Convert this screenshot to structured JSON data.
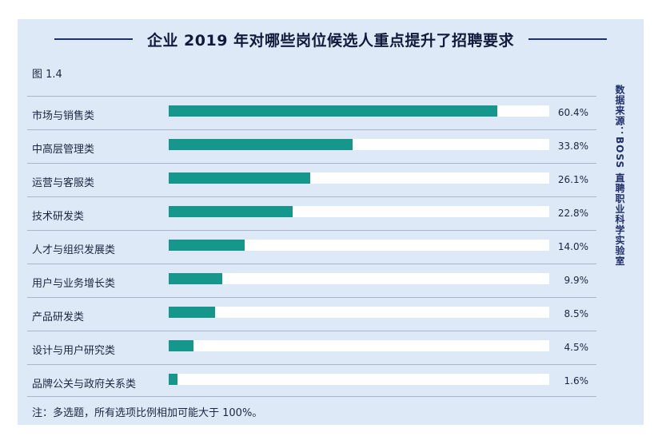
{
  "figure": {
    "label": "图 1.4",
    "source": "数据来源：BOSS 直聘职业科学实验室",
    "note": "注：多选题，所有选项比例相加可能大于 100%。",
    "colors": {
      "panel_bg": "#dde9f7",
      "bar": "#15978c",
      "track": "#ffffff",
      "title": "#111a3a"
    }
  },
  "chart_data": {
    "type": "bar",
    "orientation": "horizontal",
    "title": "企业 2019 年对哪些岗位候选人重点提升了招聘要求",
    "categories": [
      "市场与销售类",
      "中高层管理类",
      "运营与客服类",
      "技术研发类",
      "人才与组织发展类",
      "用户与业务增长类",
      "产品研发类",
      "设计与用户研究类",
      "品牌公关与政府关系类"
    ],
    "values": [
      60.4,
      33.8,
      26.1,
      22.8,
      14.0,
      9.9,
      8.5,
      4.5,
      1.6
    ],
    "value_labels": [
      "60.4%",
      "33.8%",
      "26.1%",
      "22.8%",
      "14.0%",
      "9.9%",
      "8.5%",
      "4.5%",
      "1.6%"
    ],
    "unit": "%",
    "xlim": [
      0,
      70
    ],
    "grid": false,
    "legend": "none"
  }
}
